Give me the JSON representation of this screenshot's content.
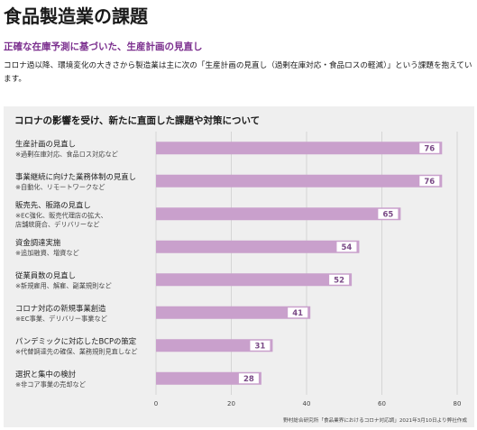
{
  "page": {
    "title": "食品製造業の課題",
    "subtitle": "正確な在庫予測に基づいた、生産計画の見直し",
    "body": "コロナ過以降、環境変化の大きさから製造業は主に次の「生産計画の見直し（過剰在庫対応・食品ロスの軽減）」という課題を抱えています。"
  },
  "colors": {
    "bar": "#c9a0cc",
    "subtitle": "#7b2f8e",
    "panel": "#efefef"
  },
  "chart_data": {
    "type": "bar",
    "orientation": "horizontal",
    "title": "コロナの影響を受け、新たに直面した課題や対策について",
    "categories": [
      {
        "label": "生産計画の見直し",
        "sub": [
          "※過剰在庫対応、食品ロス対応など"
        ]
      },
      {
        "label": "事業継続に向けた業務体制の見直し",
        "sub": [
          "※自動化、リモートワークなど"
        ]
      },
      {
        "label": "販売先、販路の見直し",
        "sub": [
          "※EC強化、販売代理店の拡大、",
          "店舗統廃合、デリバリーなど"
        ]
      },
      {
        "label": "資金調達実施",
        "sub": [
          "※追加融資、増資など"
        ]
      },
      {
        "label": "従業員数の見直し",
        "sub": [
          "※新規雇用、解雇、副業規則など"
        ]
      },
      {
        "label": "コロナ対応の新規事業創造",
        "sub": [
          "※EC事業、デリバリー事業など"
        ]
      },
      {
        "label": "パンデミックに対応したBCPの策定",
        "sub": [
          "※代替調達先の確保、業務規則見直しなど"
        ]
      },
      {
        "label": "選択と集中の検討",
        "sub": [
          "※非コア事業の売却など"
        ]
      }
    ],
    "values": [
      76,
      76,
      65,
      54,
      52,
      41,
      31,
      28
    ],
    "xlim": [
      0,
      80
    ],
    "xticks": [
      0,
      20,
      40,
      60,
      80
    ],
    "grid": true,
    "source": "野村総合研究所「食品業界におけるコロナ対応調」2021年3月10日より弊社作成"
  }
}
